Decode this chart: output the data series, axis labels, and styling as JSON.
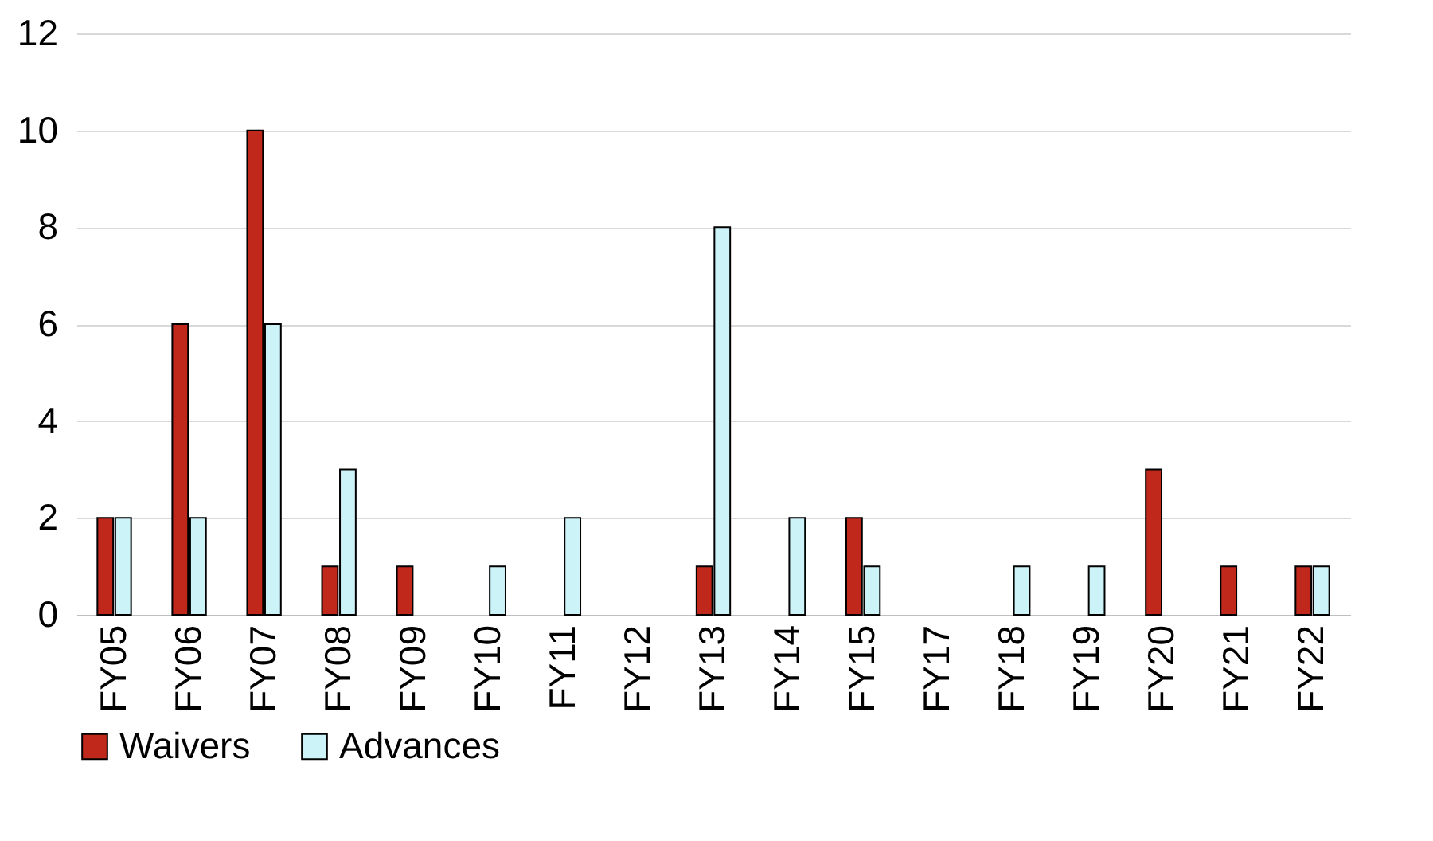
{
  "chart_data": {
    "type": "bar",
    "categories": [
      "FY05",
      "FY06",
      "FY07",
      "FY08",
      "FY09",
      "FY10",
      "FY11",
      "FY12",
      "FY13",
      "FY14",
      "FY15",
      "FY17",
      "FY18",
      "FY19",
      "FY20",
      "FY21",
      "FY22"
    ],
    "series": [
      {
        "name": "Waivers",
        "color": "#c0281c",
        "values": [
          2,
          6,
          10,
          1,
          1,
          0,
          0,
          0,
          1,
          0,
          2,
          0,
          0,
          0,
          3,
          1,
          1
        ]
      },
      {
        "name": "Advances",
        "color": "#ccf4f8",
        "values": [
          2,
          2,
          6,
          3,
          0,
          1,
          2,
          0,
          8,
          2,
          1,
          0,
          1,
          1,
          0,
          0,
          1
        ]
      }
    ],
    "ylim": [
      0,
      12
    ],
    "yticks": [
      0,
      2,
      4,
      6,
      8,
      10,
      12
    ],
    "grid": "y",
    "legend": "bottom"
  }
}
